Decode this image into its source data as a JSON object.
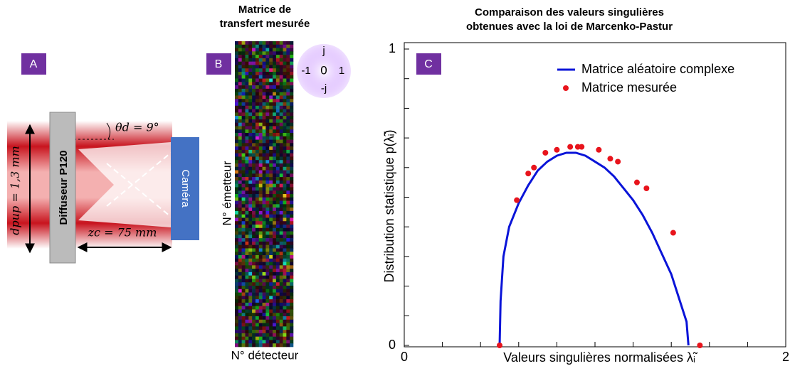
{
  "panel_a": {
    "label": "A",
    "diffuser": "Diffuseur P120",
    "angle": "θd = 9°",
    "pupil": "dpup = 1,3 mm",
    "distance": "zc = 75 mm",
    "camera": "Caméra"
  },
  "panel_b": {
    "label": "B",
    "title_lines": [
      "Matrice de",
      "transfert mesurée"
    ],
    "y_label": "N° émetteur",
    "x_label": "N° détecteur",
    "wheel": {
      "top": "j",
      "left": "-1",
      "center": "0",
      "right": "1",
      "bottom": "-j"
    }
  },
  "chart_data": {
    "type": "line",
    "panel_label": "C",
    "title_lines": [
      "Comparaison des valeurs singulières",
      "obtenues avec la loi de Marcenko-Pastur"
    ],
    "x_label": "Valeurs singulières normalisées λ̃ᵢ",
    "y_label": "Distribution statistique p(λ̃ᵢ)",
    "xlim": [
      0,
      2
    ],
    "xticks": [
      0,
      2
    ],
    "xminorticks": [
      0.2,
      0.4,
      0.6,
      0.8,
      1.0,
      1.2,
      1.4,
      1.6,
      1.8
    ],
    "ylim": [
      0,
      1
    ],
    "yticks": [
      0,
      1
    ],
    "yminorticks": [
      0.1,
      0.2,
      0.3,
      0.4,
      0.5,
      0.6,
      0.7,
      0.8,
      0.9
    ],
    "legend": "upper right",
    "series": [
      {
        "name": "Matrice aléatoire complexe",
        "color": "#0a14d8",
        "style": "line",
        "x": [
          0.5,
          0.505,
          0.52,
          0.55,
          0.6,
          0.65,
          0.7,
          0.75,
          0.8,
          0.85,
          0.9,
          0.95,
          1.0,
          1.05,
          1.1,
          1.15,
          1.2,
          1.25,
          1.3,
          1.35,
          1.4,
          1.45,
          1.48,
          1.49
        ],
        "values": [
          0,
          0.15,
          0.3,
          0.4,
          0.48,
          0.54,
          0.59,
          0.62,
          0.64,
          0.65,
          0.65,
          0.64,
          0.62,
          0.6,
          0.57,
          0.53,
          0.49,
          0.44,
          0.38,
          0.31,
          0.24,
          0.14,
          0.08,
          0
        ]
      },
      {
        "name": "Matrice mesurée",
        "color": "#e8141c",
        "style": "markers",
        "x": [
          0.5,
          0.59,
          0.65,
          0.68,
          0.74,
          0.8,
          0.87,
          0.91,
          0.93,
          1.02,
          1.08,
          1.12,
          1.22,
          1.27,
          1.41,
          1.55
        ],
        "values": [
          0,
          0.49,
          0.58,
          0.6,
          0.65,
          0.66,
          0.67,
          0.67,
          0.67,
          0.66,
          0.63,
          0.62,
          0.55,
          0.53,
          0.38,
          0
        ]
      }
    ]
  }
}
